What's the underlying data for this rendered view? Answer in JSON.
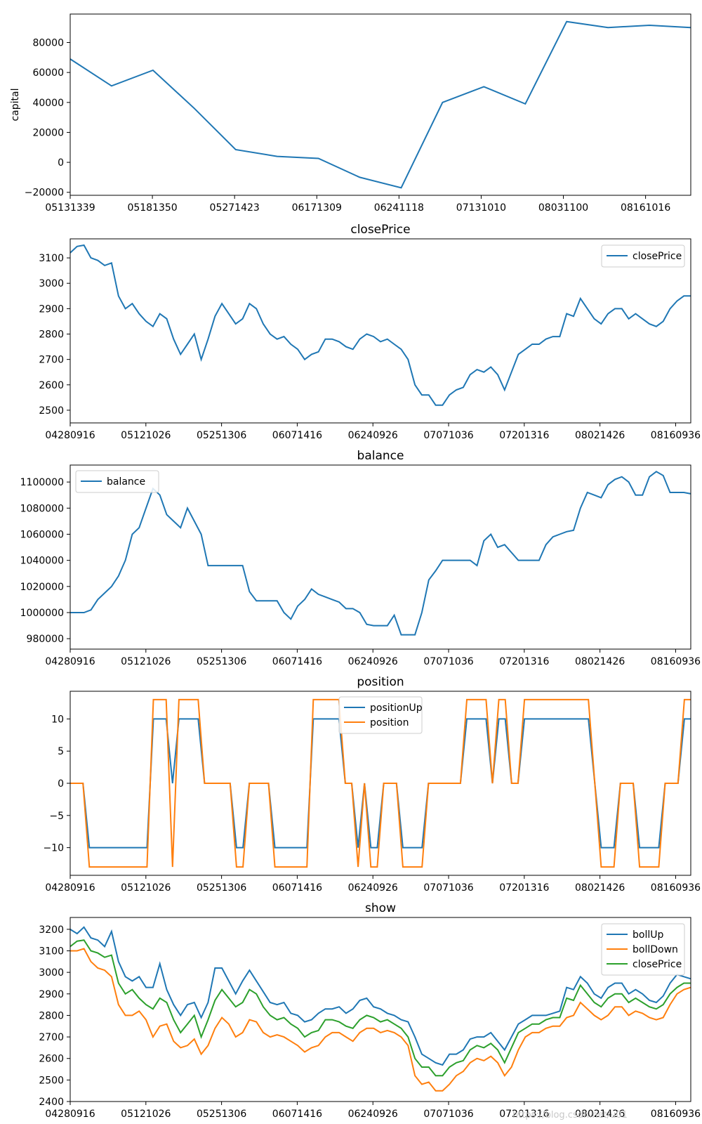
{
  "colors": {
    "blue": "#1f77b4",
    "orange": "#ff7f0e",
    "green": "#2ca02c",
    "axis": "#000000"
  },
  "watermark": "https://blog.csdn.net/u01",
  "chart_data": [
    {
      "type": "line",
      "title": "",
      "ylabel": "capital",
      "xlabel": "",
      "grid": false,
      "legend": "none",
      "x_ticks": [
        "05131339",
        "05181350",
        "05271423",
        "06171309",
        "06241118",
        "07131010",
        "08031100",
        "08161016"
      ],
      "y_ticks": [
        -20000,
        0,
        20000,
        40000,
        60000,
        80000
      ],
      "ylim": [
        -22000,
        99000
      ],
      "series": [
        {
          "values": [
            69000,
            51000,
            61500,
            36000,
            8500,
            4000,
            2600,
            -10000,
            -17000,
            40000,
            50500,
            39000,
            94000,
            90000,
            91500,
            90000
          ]
        }
      ]
    },
    {
      "type": "line",
      "title": "closePrice",
      "xlabel": "",
      "ylabel": "",
      "grid": false,
      "legend": "top-right",
      "x_ticks": [
        "04280916",
        "05121026",
        "05251306",
        "06071416",
        "06240926",
        "07071036",
        "07201316",
        "08021426",
        "08160936"
      ],
      "y_ticks": [
        2500,
        2600,
        2700,
        2800,
        2900,
        3000,
        3100
      ],
      "ylim": [
        2450,
        3175
      ],
      "series": [
        {
          "name": "closePrice",
          "values": [
            3120,
            3145,
            3150,
            3100,
            3090,
            3070,
            3080,
            2950,
            2900,
            2920,
            2880,
            2850,
            2830,
            2880,
            2860,
            2780,
            2720,
            2760,
            2800,
            2700,
            2780,
            2870,
            2920,
            2880,
            2840,
            2860,
            2920,
            2900,
            2840,
            2800,
            2780,
            2790,
            2760,
            2740,
            2700,
            2720,
            2730,
            2780,
            2780,
            2770,
            2750,
            2740,
            2780,
            2800,
            2790,
            2770,
            2780,
            2760,
            2740,
            2700,
            2600,
            2560,
            2560,
            2520,
            2520,
            2560,
            2580,
            2590,
            2640,
            2660,
            2650,
            2670,
            2640,
            2580,
            2650,
            2720,
            2740,
            2760,
            2760,
            2780,
            2790,
            2790,
            2880,
            2870,
            2940,
            2900,
            2860,
            2840,
            2880,
            2900,
            2900,
            2860,
            2880,
            2860,
            2840,
            2830,
            2850,
            2900,
            2930,
            2950,
            2950
          ]
        }
      ]
    },
    {
      "type": "line",
      "title": "balance",
      "xlabel": "",
      "ylabel": "",
      "grid": false,
      "legend": "top-left",
      "x_ticks": [
        "04280916",
        "05121026",
        "05251306",
        "06071416",
        "06240926",
        "07071036",
        "07201316",
        "08021426",
        "08160936"
      ],
      "y_ticks": [
        980000,
        1000000,
        1020000,
        1040000,
        1060000,
        1080000,
        1100000
      ],
      "ylim": [
        972000,
        1113000
      ],
      "series": [
        {
          "name": "balance",
          "values": [
            1000000,
            1000000,
            1000000,
            1002000,
            1010000,
            1015000,
            1020000,
            1028000,
            1040000,
            1060000,
            1065000,
            1080000,
            1095000,
            1090000,
            1075000,
            1070000,
            1065000,
            1080000,
            1070000,
            1060000,
            1036000,
            1036000,
            1036000,
            1036000,
            1036000,
            1036000,
            1016000,
            1009000,
            1009000,
            1009000,
            1009000,
            1000000,
            995000,
            1005000,
            1010000,
            1018000,
            1014000,
            1012000,
            1010000,
            1008000,
            1003000,
            1003000,
            1000000,
            991000,
            990000,
            990000,
            990000,
            998000,
            983000,
            983000,
            983000,
            1000000,
            1025000,
            1032000,
            1040000,
            1040000,
            1040000,
            1040000,
            1040000,
            1036000,
            1055000,
            1060000,
            1050000,
            1052000,
            1046000,
            1040000,
            1040000,
            1040000,
            1040000,
            1052000,
            1058000,
            1060000,
            1062000,
            1063000,
            1080000,
            1092000,
            1090000,
            1088000,
            1098000,
            1102000,
            1104000,
            1100000,
            1090000,
            1090000,
            1104000,
            1108000,
            1105000,
            1092000,
            1092000,
            1092000,
            1091000
          ]
        }
      ]
    },
    {
      "type": "line",
      "title": "position",
      "xlabel": "",
      "ylabel": "",
      "grid": false,
      "legend": "upper-center",
      "x_ticks": [
        "04280916",
        "05121026",
        "05251306",
        "06071416",
        "06240926",
        "07071036",
        "07201316",
        "08021426",
        "08160936"
      ],
      "y_ticks": [
        -10,
        -5,
        0,
        5,
        10
      ],
      "ylim": [
        -14.3,
        14.3
      ],
      "series": [
        {
          "name": "positionUp",
          "values": [
            0,
            0,
            0,
            -10,
            -10,
            -10,
            -10,
            -10,
            -10,
            -10,
            -10,
            -10,
            -10,
            10,
            10,
            10,
            0,
            10,
            10,
            10,
            10,
            0,
            0,
            0,
            0,
            0,
            -10,
            -10,
            0,
            0,
            0,
            0,
            -10,
            -10,
            -10,
            -10,
            -10,
            -10,
            10,
            10,
            10,
            10,
            10,
            0,
            0,
            -10,
            0,
            -10,
            -10,
            0,
            0,
            0,
            -10,
            -10,
            -10,
            -10,
            0,
            0,
            0,
            0,
            0,
            0,
            10,
            10,
            10,
            10,
            0,
            10,
            10,
            0,
            0,
            10,
            10,
            10,
            10,
            10,
            10,
            10,
            10,
            10,
            10,
            10,
            0,
            -10,
            -10,
            -10,
            0,
            0,
            0,
            -10,
            -10,
            -10,
            -10,
            0,
            0,
            0,
            10,
            10
          ]
        },
        {
          "name": "position",
          "values": [
            0,
            0,
            0,
            -13,
            -13,
            -13,
            -13,
            -13,
            -13,
            -13,
            -13,
            -13,
            -13,
            13,
            13,
            13,
            -13,
            13,
            13,
            13,
            13,
            0,
            0,
            0,
            0,
            0,
            -13,
            -13,
            0,
            0,
            0,
            0,
            -13,
            -13,
            -13,
            -13,
            -13,
            -13,
            13,
            13,
            13,
            13,
            13,
            0,
            0,
            -13,
            0,
            -13,
            -13,
            0,
            0,
            0,
            -13,
            -13,
            -13,
            -13,
            0,
            0,
            0,
            0,
            0,
            0,
            13,
            13,
            13,
            13,
            0,
            13,
            13,
            0,
            0,
            13,
            13,
            13,
            13,
            13,
            13,
            13,
            13,
            13,
            13,
            13,
            0,
            -13,
            -13,
            -13,
            0,
            0,
            0,
            -13,
            -13,
            -13,
            -13,
            0,
            0,
            0,
            13,
            13
          ]
        }
      ]
    },
    {
      "type": "line",
      "title": "show",
      "xlabel": "",
      "ylabel": "",
      "grid": false,
      "legend": "top-right",
      "x_ticks": [
        "04280916",
        "05121026",
        "05251306",
        "06071416",
        "06240926",
        "07071036",
        "07201316",
        "08021426",
        "08160936"
      ],
      "y_ticks": [
        2400,
        2500,
        2600,
        2700,
        2800,
        2900,
        3000,
        3100,
        3200
      ],
      "ylim": [
        2400,
        3255
      ],
      "series": [
        {
          "name": "bollUp",
          "values": [
            3200,
            3180,
            3210,
            3160,
            3150,
            3120,
            3190,
            3050,
            2980,
            2960,
            2980,
            2930,
            2930,
            3040,
            2920,
            2850,
            2800,
            2850,
            2860,
            2790,
            2860,
            3020,
            3020,
            2960,
            2900,
            2960,
            3010,
            2960,
            2910,
            2860,
            2850,
            2860,
            2810,
            2800,
            2770,
            2780,
            2810,
            2830,
            2830,
            2840,
            2810,
            2830,
            2870,
            2880,
            2840,
            2830,
            2810,
            2800,
            2780,
            2770,
            2700,
            2620,
            2600,
            2580,
            2570,
            2620,
            2620,
            2640,
            2690,
            2700,
            2700,
            2720,
            2680,
            2640,
            2700,
            2760,
            2780,
            2800,
            2800,
            2800,
            2810,
            2820,
            2930,
            2920,
            2980,
            2950,
            2900,
            2880,
            2930,
            2950,
            2950,
            2900,
            2920,
            2900,
            2870,
            2860,
            2890,
            2950,
            2990,
            2980,
            2970
          ]
        },
        {
          "name": "bollDown",
          "values": [
            3100,
            3100,
            3110,
            3050,
            3020,
            3010,
            2980,
            2850,
            2800,
            2800,
            2820,
            2780,
            2700,
            2750,
            2760,
            2680,
            2650,
            2660,
            2690,
            2620,
            2660,
            2740,
            2790,
            2760,
            2700,
            2720,
            2780,
            2770,
            2720,
            2700,
            2710,
            2700,
            2680,
            2660,
            2630,
            2650,
            2660,
            2700,
            2720,
            2720,
            2700,
            2680,
            2720,
            2740,
            2740,
            2720,
            2730,
            2720,
            2700,
            2660,
            2520,
            2480,
            2490,
            2450,
            2450,
            2480,
            2520,
            2540,
            2580,
            2600,
            2590,
            2610,
            2580,
            2520,
            2560,
            2640,
            2700,
            2720,
            2720,
            2740,
            2750,
            2750,
            2790,
            2800,
            2860,
            2830,
            2800,
            2780,
            2800,
            2840,
            2840,
            2800,
            2820,
            2810,
            2790,
            2780,
            2790,
            2850,
            2900,
            2920,
            2930
          ]
        },
        {
          "name": "closePrice",
          "values": [
            3120,
            3145,
            3150,
            3100,
            3090,
            3070,
            3080,
            2950,
            2900,
            2920,
            2880,
            2850,
            2830,
            2880,
            2860,
            2780,
            2720,
            2760,
            2800,
            2700,
            2780,
            2870,
            2920,
            2880,
            2840,
            2860,
            2920,
            2900,
            2840,
            2800,
            2780,
            2790,
            2760,
            2740,
            2700,
            2720,
            2730,
            2780,
            2780,
            2770,
            2750,
            2740,
            2780,
            2800,
            2790,
            2770,
            2780,
            2760,
            2740,
            2700,
            2600,
            2560,
            2560,
            2520,
            2520,
            2560,
            2580,
            2590,
            2640,
            2660,
            2650,
            2670,
            2640,
            2580,
            2650,
            2720,
            2740,
            2760,
            2760,
            2780,
            2790,
            2790,
            2880,
            2870,
            2940,
            2900,
            2860,
            2840,
            2880,
            2900,
            2900,
            2860,
            2880,
            2860,
            2840,
            2830,
            2850,
            2900,
            2930,
            2950,
            2950
          ]
        }
      ]
    }
  ]
}
